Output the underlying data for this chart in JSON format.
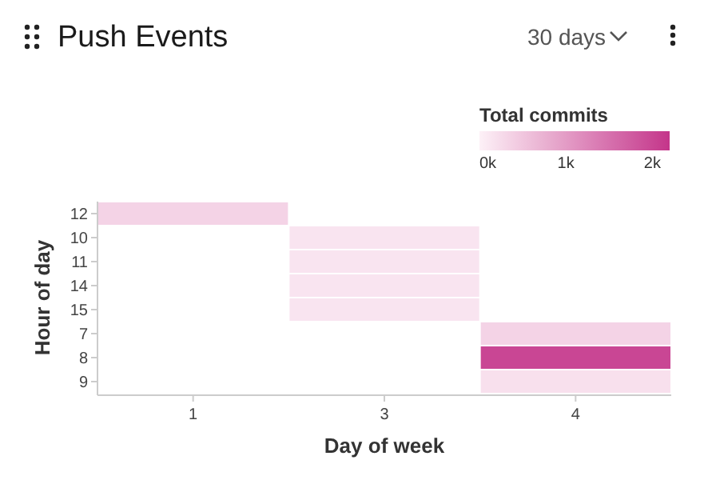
{
  "chart_data": {
    "type": "heatmap",
    "title": "Push Events",
    "xlabel": "Day of week",
    "ylabel": "Hour of day",
    "legend_title": "Total commits",
    "annotations": [
      "30 days"
    ],
    "categories": [
      "1",
      "3",
      "4"
    ],
    "y_categories": [
      "12",
      "10",
      "11",
      "14",
      "15",
      "7",
      "8",
      "9"
    ],
    "cells": [
      [
        350,
        null,
        null
      ],
      [
        null,
        150,
        null
      ],
      [
        null,
        150,
        null
      ],
      [
        null,
        150,
        null
      ],
      [
        null,
        150,
        null
      ],
      [
        null,
        null,
        350
      ],
      [
        null,
        null,
        2000
      ],
      [
        null,
        null,
        200
      ]
    ],
    "clim": [
      0,
      2200
    ],
    "cticks": [
      {
        "value": 0,
        "label": "0k"
      },
      {
        "value": 1000,
        "label": "1k"
      },
      {
        "value": 2000,
        "label": "2k"
      }
    ],
    "colors": [
      "#fdf1f7",
      "#c4358a"
    ]
  }
}
